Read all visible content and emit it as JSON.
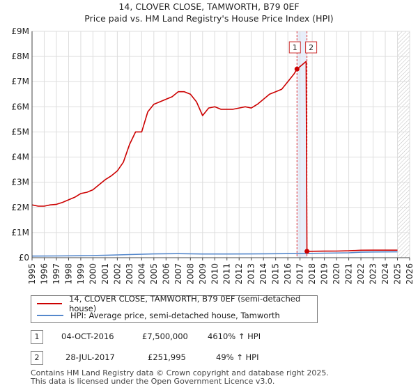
{
  "chart_data": {
    "type": "line",
    "title_line1": "14, CLOVER CLOSE, TAMWORTH, B79 0EF",
    "title_line2": "Price paid vs. HM Land Registry's House Price Index (HPI)",
    "xlabel": "",
    "ylabel": "",
    "xlim": [
      1995,
      2026
    ],
    "ylim": [
      0,
      9000000
    ],
    "y_ticks": [
      {
        "value": 0,
        "label": "£0"
      },
      {
        "value": 1000000,
        "label": "£1M"
      },
      {
        "value": 2000000,
        "label": "£2M"
      },
      {
        "value": 3000000,
        "label": "£3M"
      },
      {
        "value": 4000000,
        "label": "£4M"
      },
      {
        "value": 5000000,
        "label": "£5M"
      },
      {
        "value": 6000000,
        "label": "£6M"
      },
      {
        "value": 7000000,
        "label": "£7M"
      },
      {
        "value": 8000000,
        "label": "£8M"
      },
      {
        "value": 9000000,
        "label": "£9M"
      }
    ],
    "x_ticks": [
      "1995",
      "1996",
      "1997",
      "1998",
      "1999",
      "2000",
      "2001",
      "2002",
      "2003",
      "2004",
      "2005",
      "2006",
      "2007",
      "2008",
      "2009",
      "2010",
      "2011",
      "2012",
      "2013",
      "2014",
      "2015",
      "2016",
      "2017",
      "2018",
      "2019",
      "2020",
      "2021",
      "2022",
      "2023",
      "2024",
      "2025",
      "2026"
    ],
    "series": [
      {
        "name": "14, CLOVER CLOSE, TAMWORTH, B79 0EF (semi-detached house)",
        "color": "#cc0000",
        "points": [
          [
            1995.0,
            2100000
          ],
          [
            1995.5,
            2050000
          ],
          [
            1996.0,
            2050000
          ],
          [
            1996.5,
            2100000
          ],
          [
            1997.0,
            2120000
          ],
          [
            1997.5,
            2200000
          ],
          [
            1998.0,
            2300000
          ],
          [
            1998.5,
            2400000
          ],
          [
            1999.0,
            2550000
          ],
          [
            1999.5,
            2600000
          ],
          [
            2000.0,
            2700000
          ],
          [
            2000.5,
            2900000
          ],
          [
            2001.0,
            3100000
          ],
          [
            2001.5,
            3250000
          ],
          [
            2002.0,
            3450000
          ],
          [
            2002.5,
            3800000
          ],
          [
            2003.0,
            4500000
          ],
          [
            2003.5,
            5000000
          ],
          [
            2004.0,
            5000000
          ],
          [
            2004.5,
            5800000
          ],
          [
            2005.0,
            6100000
          ],
          [
            2005.5,
            6200000
          ],
          [
            2006.0,
            6300000
          ],
          [
            2006.5,
            6400000
          ],
          [
            2007.0,
            6600000
          ],
          [
            2007.5,
            6600000
          ],
          [
            2008.0,
            6500000
          ],
          [
            2008.5,
            6200000
          ],
          [
            2009.0,
            5650000
          ],
          [
            2009.5,
            5950000
          ],
          [
            2010.0,
            6000000
          ],
          [
            2010.5,
            5900000
          ],
          [
            2011.0,
            5900000
          ],
          [
            2011.5,
            5900000
          ],
          [
            2012.0,
            5950000
          ],
          [
            2012.5,
            6000000
          ],
          [
            2013.0,
            5950000
          ],
          [
            2013.5,
            6100000
          ],
          [
            2014.0,
            6300000
          ],
          [
            2014.5,
            6500000
          ],
          [
            2015.0,
            6600000
          ],
          [
            2015.5,
            6700000
          ],
          [
            2016.0,
            7000000
          ],
          [
            2016.5,
            7300000
          ],
          [
            2016.75,
            7500000
          ],
          [
            2017.0,
            7600000
          ],
          [
            2017.5,
            7800000
          ],
          [
            2017.57,
            251995
          ],
          [
            2018.0,
            255000
          ],
          [
            2019.0,
            260000
          ],
          [
            2020.0,
            262000
          ],
          [
            2021.0,
            275000
          ],
          [
            2022.0,
            295000
          ],
          [
            2023.0,
            300000
          ],
          [
            2024.0,
            300000
          ],
          [
            2025.0,
            300000
          ]
        ]
      },
      {
        "name": "HPI: Average price, semi-detached house, Tamworth",
        "color": "#5588cc",
        "points": [
          [
            1995.0,
            65000
          ],
          [
            1997.0,
            70000
          ],
          [
            1999.0,
            78000
          ],
          [
            2001.0,
            95000
          ],
          [
            2003.0,
            125000
          ],
          [
            2005.0,
            150000
          ],
          [
            2007.0,
            160000
          ],
          [
            2009.0,
            148000
          ],
          [
            2011.0,
            148000
          ],
          [
            2013.0,
            150000
          ],
          [
            2015.0,
            158000
          ],
          [
            2016.75,
            162000
          ],
          [
            2017.57,
            170000
          ],
          [
            2019.0,
            180000
          ],
          [
            2021.0,
            195000
          ],
          [
            2022.0,
            220000
          ],
          [
            2023.0,
            228000
          ],
          [
            2024.0,
            230000
          ],
          [
            2025.0,
            232000
          ]
        ]
      }
    ],
    "sales": [
      {
        "id": "1",
        "x": 2016.75,
        "y": 7500000
      },
      {
        "id": "2",
        "x": 2017.57,
        "y": 251995
      }
    ],
    "forecast_start": 2025.0
  },
  "legend": {
    "items": [
      {
        "label": "14, CLOVER CLOSE, TAMWORTH, B79 0EF (semi-detached house)",
        "color": "#cc0000"
      },
      {
        "label": "HPI: Average price, semi-detached house, Tamworth",
        "color": "#5588cc"
      }
    ]
  },
  "transactions": [
    {
      "num": "1",
      "date": "04-OCT-2016",
      "price": "£7,500,000",
      "hpi": "4610% ↑ HPI"
    },
    {
      "num": "2",
      "date": "28-JUL-2017",
      "price": "£251,995",
      "hpi": "49% ↑ HPI"
    }
  ],
  "footer": {
    "line1": "Contains HM Land Registry data © Crown copyright and database right 2025.",
    "line2": "This data is licensed under the Open Government Licence v3.0."
  }
}
